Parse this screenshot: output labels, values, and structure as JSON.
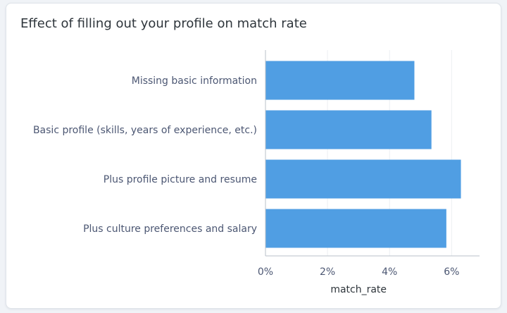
{
  "chart_data": {
    "type": "bar",
    "orientation": "horizontal",
    "title": "Effect of filling out your profile on match rate",
    "categories": [
      "Missing basic information",
      "Basic profile (skills, years of experience, etc.)",
      "Plus profile picture and resume",
      "Plus culture preferences and salary"
    ],
    "series": [
      {
        "values": [
          4.8,
          5.35,
          6.3,
          5.83
        ]
      }
    ],
    "xlabel": "match_rate",
    "ylabel": "",
    "xlim": [
      0,
      6.9
    ],
    "xticks": [
      {
        "value": 0,
        "label": "0%"
      },
      {
        "value": 2,
        "label": "2%"
      },
      {
        "value": 4,
        "label": "4%"
      },
      {
        "value": 6,
        "label": "6%"
      }
    ],
    "grid": true,
    "legend": "none",
    "colors": {
      "bar": "#509ee3",
      "grid": "#eceff2",
      "axis": "#b9c1ca",
      "text": "#4c5773",
      "title": "#2e353b"
    }
  }
}
